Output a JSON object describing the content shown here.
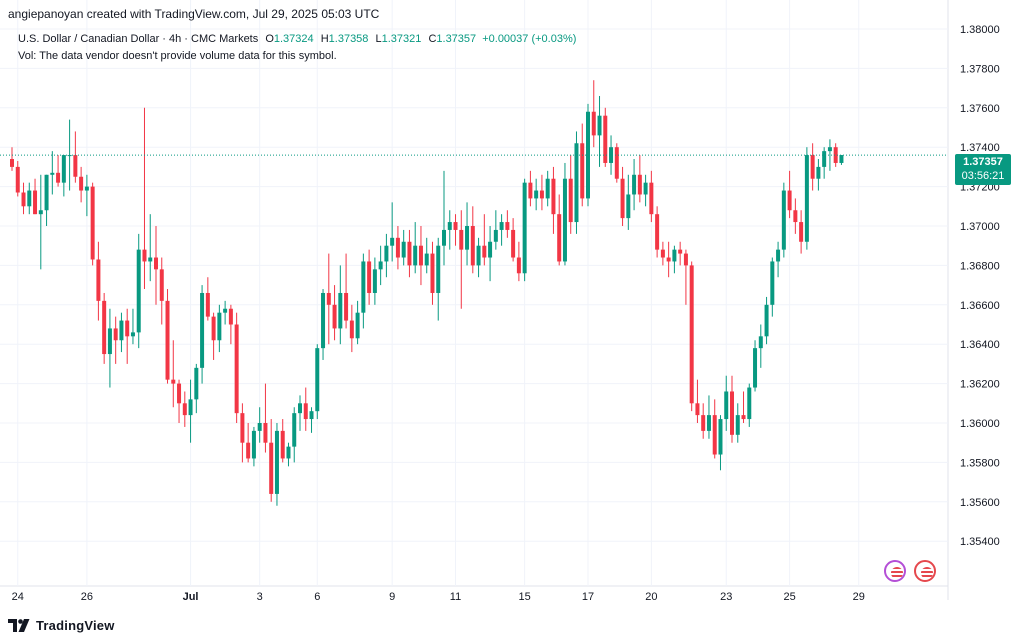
{
  "header": {
    "credit": "angiepanoyan created with TradingView.com, Jul 29, 2025 05:03 UTC",
    "symbol": "U.S. Dollar / Canadian Dollar · 4h · CMC Markets",
    "o_label": "O",
    "o_value": "1.37324",
    "h_label": "H",
    "h_value": "1.37358",
    "l_label": "L",
    "l_value": "1.37321",
    "c_label": "C",
    "c_value": "1.37357",
    "change": "+0.00037 (+0.03%)",
    "vol_note": "Vol: The data vendor doesn't provide volume data for this symbol."
  },
  "last_price": {
    "price": "1.37357",
    "countdown": "03:56:21"
  },
  "footer": {
    "brand": "TradingView"
  },
  "colors": {
    "up": "#089981",
    "down": "#f23645",
    "grid": "#f0f3fa",
    "text": "#131722",
    "lastline": "#089981"
  },
  "icons": {
    "logo": "tradingview-logo-icon",
    "badge_1": "us-flag-event-icon",
    "badge_2": "us-flag-event-icon"
  },
  "chart_data": {
    "type": "candlestick",
    "title": "U.S. Dollar / Canadian Dollar · 4h · CMC Markets",
    "ylim": [
      1.353,
      1.381
    ],
    "y_ticks": [
      "1.38000",
      "1.37800",
      "1.37600",
      "1.37400",
      "1.37200",
      "1.37000",
      "1.36800",
      "1.36600",
      "1.36400",
      "1.36200",
      "1.36000",
      "1.35800",
      "1.35600",
      "1.35400"
    ],
    "y_tick_values": [
      1.38,
      1.378,
      1.376,
      1.374,
      1.372,
      1.37,
      1.368,
      1.366,
      1.364,
      1.362,
      1.36,
      1.358,
      1.356,
      1.354
    ],
    "x_ticks": [
      "24",
      "26",
      "Jul",
      "3",
      "6",
      "9",
      "11",
      "15",
      "17",
      "20",
      "23",
      "25",
      "29"
    ],
    "x_tick_index": [
      1,
      13,
      31,
      43,
      53,
      66,
      77,
      89,
      100,
      111,
      124,
      135,
      147
    ],
    "grid": true,
    "candles": [
      [
        1.3734,
        1.374,
        1.3728,
        1.373
      ],
      [
        1.373,
        1.3733,
        1.3715,
        1.3717
      ],
      [
        1.3717,
        1.3722,
        1.3706,
        1.371
      ],
      [
        1.371,
        1.3722,
        1.3706,
        1.3718
      ],
      [
        1.3718,
        1.3724,
        1.3706,
        1.3706
      ],
      [
        1.3706,
        1.3726,
        1.3678,
        1.3708
      ],
      [
        1.3708,
        1.3726,
        1.37,
        1.3726
      ],
      [
        1.3726,
        1.3738,
        1.3716,
        1.3727
      ],
      [
        1.3727,
        1.3736,
        1.372,
        1.3722
      ],
      [
        1.3722,
        1.3736,
        1.3715,
        1.3736
      ],
      [
        1.3736,
        1.3754,
        1.3718,
        1.3736
      ],
      [
        1.3736,
        1.3748,
        1.3722,
        1.3725
      ],
      [
        1.3725,
        1.373,
        1.3712,
        1.3718
      ],
      [
        1.3718,
        1.3726,
        1.3705,
        1.372
      ],
      [
        1.372,
        1.3722,
        1.368,
        1.3683
      ],
      [
        1.3683,
        1.3692,
        1.3652,
        1.3662
      ],
      [
        1.3662,
        1.3666,
        1.363,
        1.3635
      ],
      [
        1.3635,
        1.3658,
        1.3618,
        1.3648
      ],
      [
        1.3648,
        1.3654,
        1.363,
        1.3642
      ],
      [
        1.3642,
        1.3656,
        1.3636,
        1.3652
      ],
      [
        1.3652,
        1.3658,
        1.363,
        1.3644
      ],
      [
        1.3644,
        1.3658,
        1.364,
        1.3646
      ],
      [
        1.3646,
        1.3696,
        1.3638,
        1.3688
      ],
      [
        1.3688,
        1.376,
        1.3668,
        1.3682
      ],
      [
        1.3682,
        1.3706,
        1.3672,
        1.3684
      ],
      [
        1.3684,
        1.37,
        1.366,
        1.3678
      ],
      [
        1.3678,
        1.3684,
        1.365,
        1.3662
      ],
      [
        1.3662,
        1.3668,
        1.362,
        1.3622
      ],
      [
        1.3622,
        1.3642,
        1.3608,
        1.362
      ],
      [
        1.362,
        1.3622,
        1.36,
        1.361
      ],
      [
        1.361,
        1.3616,
        1.3598,
        1.3604
      ],
      [
        1.3604,
        1.3622,
        1.359,
        1.3612
      ],
      [
        1.3612,
        1.363,
        1.3605,
        1.3628
      ],
      [
        1.3628,
        1.367,
        1.362,
        1.3666
      ],
      [
        1.3666,
        1.3674,
        1.3652,
        1.3654
      ],
      [
        1.3654,
        1.3656,
        1.3632,
        1.3642
      ],
      [
        1.3642,
        1.366,
        1.3636,
        1.3656
      ],
      [
        1.3656,
        1.3662,
        1.365,
        1.3658
      ],
      [
        1.3658,
        1.366,
        1.364,
        1.365
      ],
      [
        1.365,
        1.3656,
        1.36,
        1.3605
      ],
      [
        1.3605,
        1.361,
        1.358,
        1.359
      ],
      [
        1.359,
        1.36,
        1.358,
        1.3582
      ],
      [
        1.3582,
        1.3598,
        1.3578,
        1.3596
      ],
      [
        1.3596,
        1.3608,
        1.359,
        1.36
      ],
      [
        1.36,
        1.362,
        1.3585,
        1.359
      ],
      [
        1.359,
        1.3602,
        1.356,
        1.3564
      ],
      [
        1.3564,
        1.36,
        1.3558,
        1.3596
      ],
      [
        1.3596,
        1.3602,
        1.358,
        1.3582
      ],
      [
        1.3582,
        1.359,
        1.3578,
        1.3588
      ],
      [
        1.3588,
        1.3608,
        1.358,
        1.3605
      ],
      [
        1.3605,
        1.3614,
        1.3596,
        1.361
      ],
      [
        1.361,
        1.3618,
        1.3596,
        1.3602
      ],
      [
        1.3602,
        1.3608,
        1.3595,
        1.3606
      ],
      [
        1.3606,
        1.364,
        1.3602,
        1.3638
      ],
      [
        1.3638,
        1.3668,
        1.3632,
        1.3666
      ],
      [
        1.3666,
        1.3686,
        1.364,
        1.366
      ],
      [
        1.366,
        1.367,
        1.3642,
        1.3648
      ],
      [
        1.3648,
        1.368,
        1.364,
        1.3666
      ],
      [
        1.3666,
        1.3686,
        1.3648,
        1.3652
      ],
      [
        1.3652,
        1.366,
        1.3636,
        1.3643
      ],
      [
        1.3643,
        1.3662,
        1.364,
        1.3656
      ],
      [
        1.3656,
        1.3686,
        1.3648,
        1.3682
      ],
      [
        1.3682,
        1.3688,
        1.366,
        1.3666
      ],
      [
        1.3666,
        1.3684,
        1.366,
        1.3678
      ],
      [
        1.3678,
        1.369,
        1.367,
        1.3682
      ],
      [
        1.3682,
        1.3696,
        1.3674,
        1.369
      ],
      [
        1.369,
        1.3712,
        1.3682,
        1.3694
      ],
      [
        1.3694,
        1.37,
        1.3678,
        1.3684
      ],
      [
        1.3684,
        1.3698,
        1.368,
        1.3692
      ],
      [
        1.3692,
        1.3698,
        1.3674,
        1.368
      ],
      [
        1.368,
        1.3702,
        1.3676,
        1.369
      ],
      [
        1.369,
        1.37,
        1.367,
        1.368
      ],
      [
        1.368,
        1.3694,
        1.3676,
        1.3686
      ],
      [
        1.3686,
        1.3692,
        1.366,
        1.3666
      ],
      [
        1.3666,
        1.3694,
        1.3652,
        1.369
      ],
      [
        1.369,
        1.3728,
        1.368,
        1.3698
      ],
      [
        1.3698,
        1.3708,
        1.3688,
        1.3702
      ],
      [
        1.3702,
        1.3706,
        1.369,
        1.3698
      ],
      [
        1.3698,
        1.3708,
        1.3658,
        1.3688
      ],
      [
        1.3688,
        1.3712,
        1.368,
        1.37
      ],
      [
        1.37,
        1.371,
        1.3676,
        1.368
      ],
      [
        1.368,
        1.3694,
        1.3674,
        1.369
      ],
      [
        1.369,
        1.3706,
        1.368,
        1.3684
      ],
      [
        1.3684,
        1.37,
        1.3672,
        1.3692
      ],
      [
        1.3692,
        1.3708,
        1.3688,
        1.3698
      ],
      [
        1.3698,
        1.3706,
        1.369,
        1.3702
      ],
      [
        1.3702,
        1.3708,
        1.3694,
        1.3698
      ],
      [
        1.3698,
        1.3704,
        1.3682,
        1.3684
      ],
      [
        1.3684,
        1.3692,
        1.3672,
        1.3676
      ],
      [
        1.3676,
        1.3724,
        1.3672,
        1.3722
      ],
      [
        1.3722,
        1.3728,
        1.371,
        1.3714
      ],
      [
        1.3714,
        1.3724,
        1.3708,
        1.3718
      ],
      [
        1.3718,
        1.3726,
        1.3708,
        1.3714
      ],
      [
        1.3714,
        1.3728,
        1.371,
        1.3724
      ],
      [
        1.3724,
        1.373,
        1.3696,
        1.3706
      ],
      [
        1.3706,
        1.3716,
        1.368,
        1.3682
      ],
      [
        1.3682,
        1.3732,
        1.368,
        1.3724
      ],
      [
        1.3724,
        1.3736,
        1.3696,
        1.3702
      ],
      [
        1.3702,
        1.3748,
        1.3696,
        1.3742
      ],
      [
        1.3742,
        1.3752,
        1.371,
        1.3714
      ],
      [
        1.3714,
        1.3762,
        1.371,
        1.3758
      ],
      [
        1.3758,
        1.3774,
        1.374,
        1.3746
      ],
      [
        1.3746,
        1.3766,
        1.373,
        1.3756
      ],
      [
        1.3756,
        1.376,
        1.373,
        1.3732
      ],
      [
        1.3732,
        1.3746,
        1.3726,
        1.374
      ],
      [
        1.374,
        1.3742,
        1.3722,
        1.3724
      ],
      [
        1.3724,
        1.373,
        1.37,
        1.3704
      ],
      [
        1.3704,
        1.3726,
        1.3698,
        1.3716
      ],
      [
        1.3716,
        1.3734,
        1.3708,
        1.3726
      ],
      [
        1.3726,
        1.3736,
        1.3712,
        1.3716
      ],
      [
        1.3716,
        1.3726,
        1.371,
        1.3722
      ],
      [
        1.3722,
        1.3728,
        1.3702,
        1.3706
      ],
      [
        1.3706,
        1.371,
        1.3684,
        1.3688
      ],
      [
        1.3688,
        1.3692,
        1.368,
        1.3684
      ],
      [
        1.3684,
        1.3692,
        1.3674,
        1.3682
      ],
      [
        1.3682,
        1.369,
        1.3676,
        1.3688
      ],
      [
        1.3688,
        1.3692,
        1.368,
        1.3686
      ],
      [
        1.3686,
        1.3688,
        1.366,
        1.368
      ],
      [
        1.368,
        1.3682,
        1.3606,
        1.361
      ],
      [
        1.361,
        1.3622,
        1.36,
        1.3604
      ],
      [
        1.3604,
        1.361,
        1.3592,
        1.3596
      ],
      [
        1.3596,
        1.3614,
        1.3592,
        1.3604
      ],
      [
        1.3604,
        1.3612,
        1.3582,
        1.3584
      ],
      [
        1.3584,
        1.3604,
        1.3576,
        1.3602
      ],
      [
        1.3602,
        1.3624,
        1.3596,
        1.3616
      ],
      [
        1.3616,
        1.3624,
        1.359,
        1.3594
      ],
      [
        1.3594,
        1.361,
        1.359,
        1.3604
      ],
      [
        1.3604,
        1.3616,
        1.36,
        1.3602
      ],
      [
        1.3602,
        1.362,
        1.3598,
        1.3618
      ],
      [
        1.3618,
        1.3642,
        1.3616,
        1.3638
      ],
      [
        1.3638,
        1.365,
        1.3628,
        1.3644
      ],
      [
        1.3644,
        1.3664,
        1.364,
        1.366
      ],
      [
        1.366,
        1.3684,
        1.3654,
        1.3682
      ],
      [
        1.3682,
        1.3692,
        1.3674,
        1.3688
      ],
      [
        1.3688,
        1.3722,
        1.3684,
        1.3718
      ],
      [
        1.3718,
        1.3728,
        1.3704,
        1.3708
      ],
      [
        1.3708,
        1.3714,
        1.3696,
        1.3702
      ],
      [
        1.3702,
        1.3708,
        1.3686,
        1.3692
      ],
      [
        1.3692,
        1.374,
        1.3688,
        1.3736
      ],
      [
        1.3736,
        1.3742,
        1.3718,
        1.3724
      ],
      [
        1.3724,
        1.3734,
        1.3718,
        1.373
      ],
      [
        1.373,
        1.374,
        1.3724,
        1.3738
      ],
      [
        1.3738,
        1.3744,
        1.3728,
        1.374
      ],
      [
        1.374,
        1.3742,
        1.373,
        1.3732
      ],
      [
        1.3732,
        1.3736,
        1.3731,
        1.3736
      ]
    ]
  }
}
